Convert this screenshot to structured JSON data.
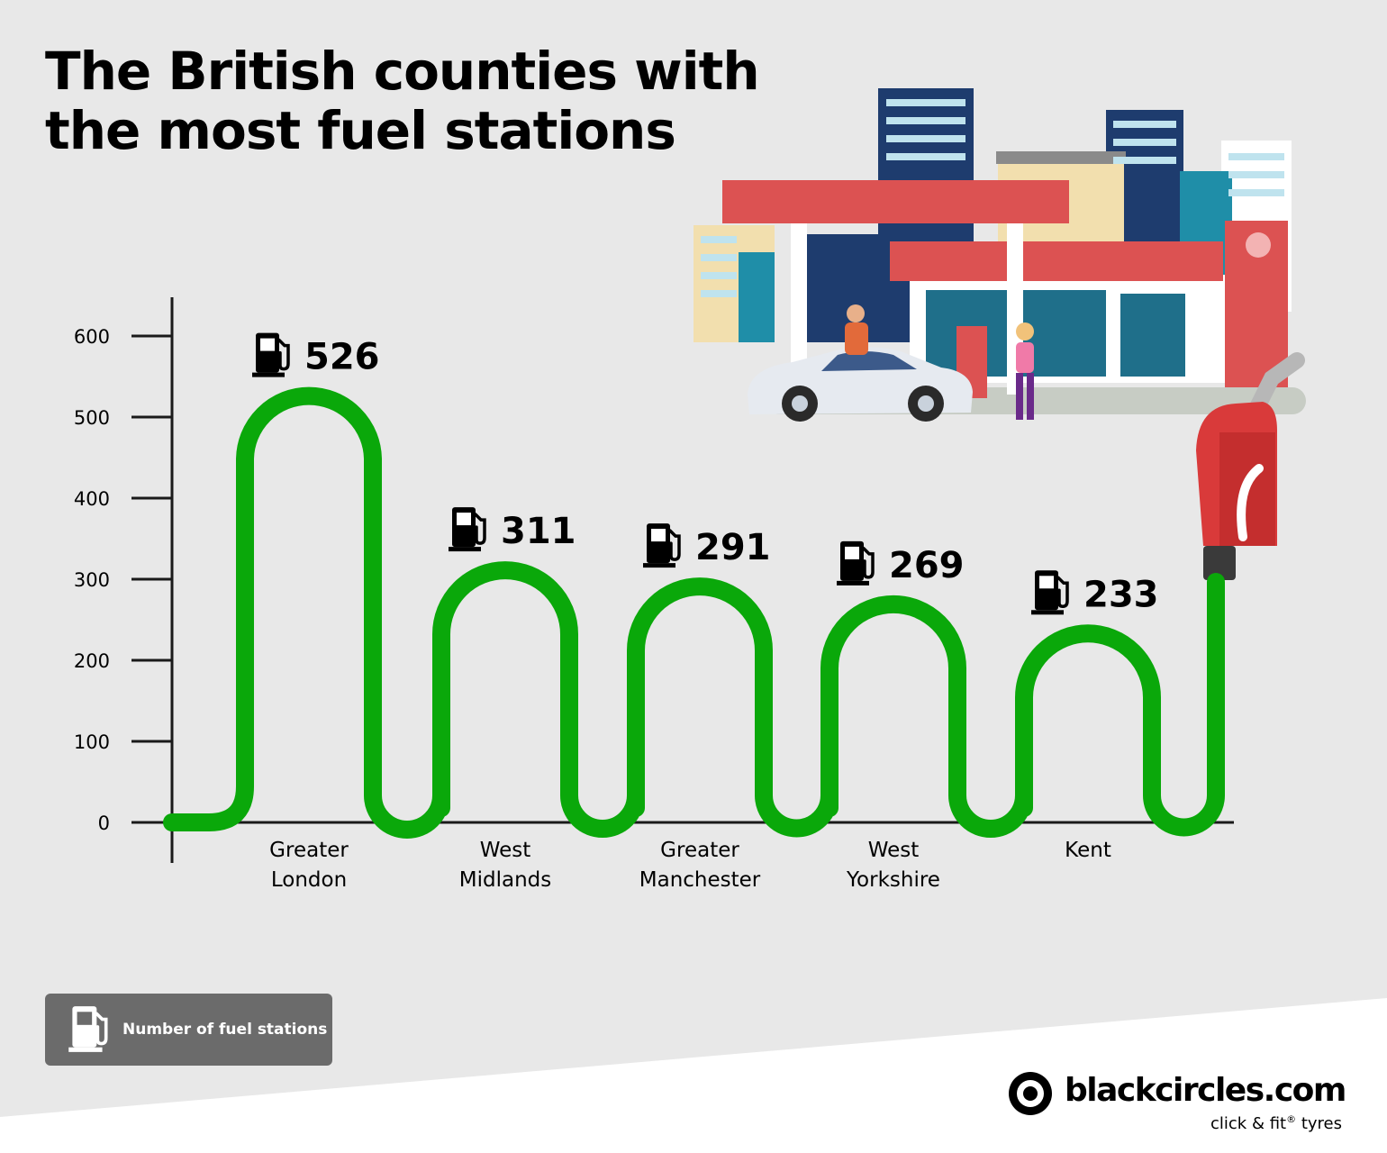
{
  "title_line1": "The British counties with",
  "title_line2": "the most fuel stations",
  "chart_data": {
    "type": "bar",
    "categories": [
      [
        "Greater",
        "London"
      ],
      [
        "West",
        "Midlands"
      ],
      [
        "Greater",
        "Manchester"
      ],
      [
        "West",
        "Yorkshire"
      ],
      [
        "Kent"
      ]
    ],
    "values": [
      526,
      311,
      291,
      269,
      233
    ],
    "ylim": [
      0,
      600
    ],
    "yticks": [
      0,
      100,
      200,
      300,
      400,
      500,
      600
    ],
    "legend": "Number of fuel stations",
    "colors": {
      "hose": "#0aa80a",
      "axis": "#1a1a1a",
      "text": "#000000"
    }
  },
  "legend": {
    "label": "Number of fuel stations",
    "icon": "fuel-pump-icon"
  },
  "brand": {
    "name": "blackcircles.com",
    "tagline_pre": "click & fit",
    "tagline_reg": "®",
    "tagline_post": "tyres"
  },
  "colors": {
    "background": "#e8e8e8",
    "footer": "#ffffff",
    "canopy": "#dc5252",
    "legend_box": "#6b6b6b"
  }
}
